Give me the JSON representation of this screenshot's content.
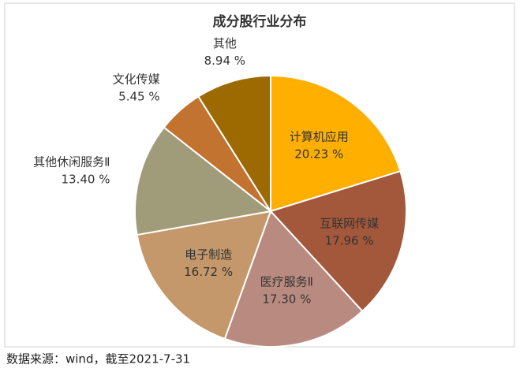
{
  "chart_data": {
    "type": "pie",
    "title": "成分股行业分布",
    "categories": [
      "计算机应用",
      "互联网传媒",
      "医疗服务Ⅱ",
      "电子制造",
      "其他休闲服务Ⅱ",
      "文化传媒",
      "其他"
    ],
    "values": [
      20.23,
      17.96,
      17.3,
      16.72,
      13.4,
      5.45,
      8.94
    ],
    "value_labels": [
      "20.23 %",
      "17.96 %",
      "17.30 %",
      "16.72 %",
      "13.40 %",
      "5.45 %",
      "8.94 %"
    ],
    "colors": [
      "#ffaf00",
      "#a3573b",
      "#b98b80",
      "#c4986a",
      "#a09b79",
      "#c1732f",
      "#9c6a00"
    ]
  },
  "source": "数据来源：wind，截至2021-7-31"
}
